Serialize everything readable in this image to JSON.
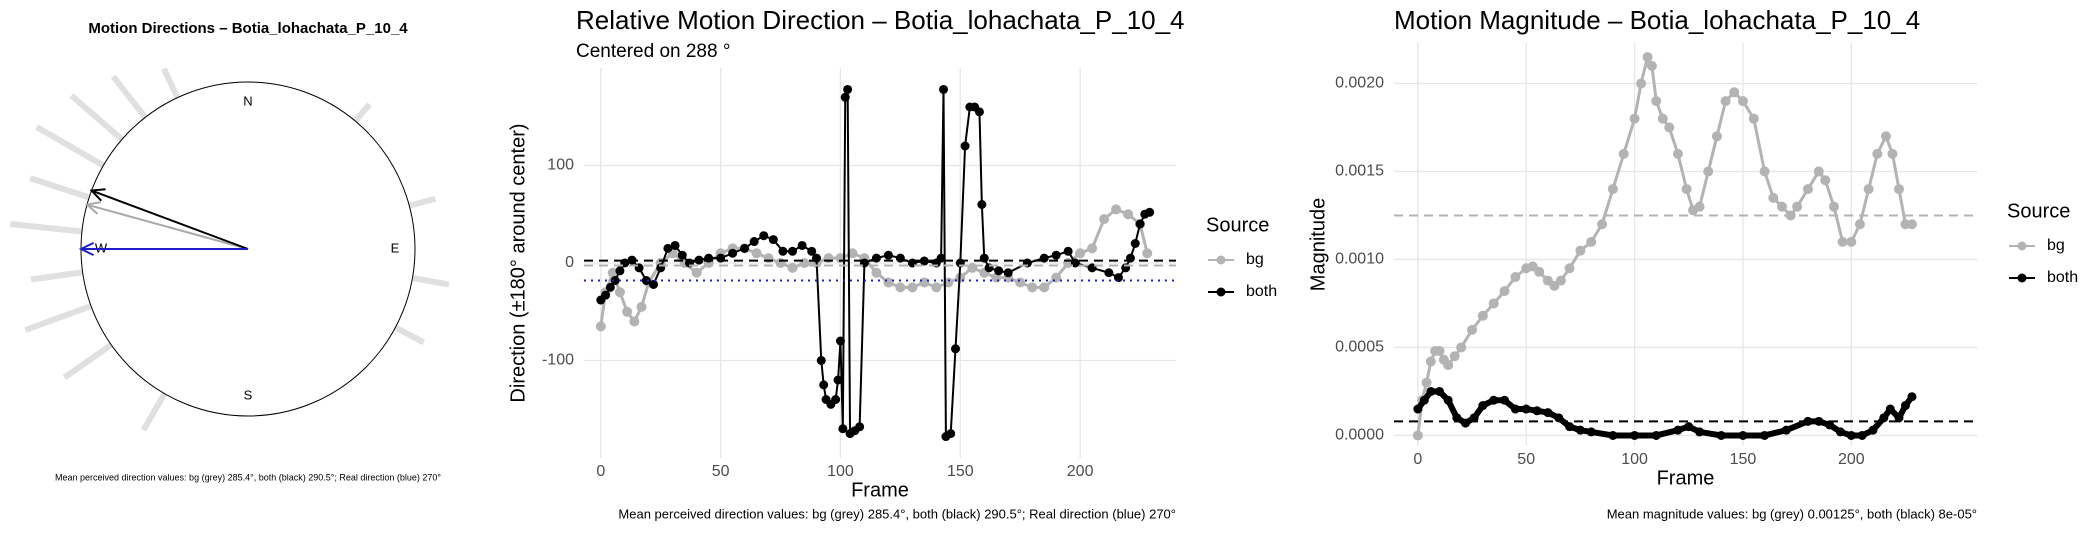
{
  "chart_data": [
    {
      "type": "polar",
      "title": "Motion Directions – Botia_lohachata_P_10_4",
      "compass": [
        "N",
        "E",
        "S",
        "W"
      ],
      "arrows": [
        {
          "value": 285.4,
          "color": "#aaaaaa"
        },
        {
          "value": 290.5,
          "color": "#000000"
        },
        {
          "value": 270,
          "color": "#1f1fc8"
        }
      ],
      "caption": "Mean perceived direction values: bg (grey) 285.4°, both (black) 290.5°; Real direction (blue) 270°"
    },
    {
      "type": "line",
      "title": "Relative Motion Direction – Botia_lohachata_P_10_4",
      "subtitle": "Centered on  288 °",
      "xlabel": "Frame",
      "ylabel": "Direction (±180° around center)",
      "caption": "Mean perceived direction values: bg (grey) 285.4°, both (black) 290.5°; Real direction (blue) 270°",
      "legend_title": "Source",
      "xlim": [
        -7,
        240
      ],
      "ylim": [
        -200,
        200
      ],
      "xticks": [
        0,
        50,
        100,
        150,
        200
      ],
      "yticks": [
        -100,
        0,
        100
      ],
      "grid": true,
      "hlines": [
        {
          "value": 2.5,
          "color": "#000000",
          "style": "dashed"
        },
        {
          "value": -2.6,
          "color": "#b3b3b3",
          "style": "dashed"
        },
        {
          "value": -18,
          "color": "#1f1fc8",
          "style": "dotted"
        }
      ],
      "series": [
        {
          "name": "bg",
          "color": "#b3b3b3",
          "x": [
            0,
            2,
            5,
            8,
            11,
            14,
            17,
            20,
            25,
            30,
            35,
            40,
            45,
            50,
            55,
            60,
            65,
            70,
            75,
            80,
            85,
            90,
            95,
            100,
            105,
            110,
            115,
            120,
            125,
            130,
            135,
            140,
            145,
            150,
            155,
            160,
            165,
            170,
            175,
            180,
            185,
            190,
            195,
            200,
            205,
            210,
            215,
            220,
            225,
            228
          ],
          "values": [
            -65,
            -30,
            -10,
            -30,
            -50,
            -60,
            -45,
            -20,
            0,
            10,
            0,
            -10,
            0,
            10,
            15,
            15,
            10,
            5,
            0,
            -5,
            0,
            0,
            5,
            5,
            10,
            5,
            -10,
            -20,
            -25,
            -25,
            -20,
            -25,
            -20,
            -15,
            -5,
            -10,
            -15,
            -15,
            -20,
            -25,
            -25,
            -15,
            0,
            10,
            15,
            45,
            55,
            50,
            40,
            10
          ]
        },
        {
          "name": "both",
          "color": "#000000",
          "x": [
            0,
            2,
            4,
            6,
            8,
            10,
            13,
            16,
            19,
            22,
            25,
            28,
            31,
            34,
            37,
            41,
            45,
            50,
            55,
            60,
            64,
            68,
            72,
            76,
            80,
            84,
            88,
            90,
            92,
            93,
            94,
            96,
            98,
            99,
            100,
            101,
            102,
            103,
            104,
            106,
            108,
            110,
            115,
            120,
            125,
            130,
            135,
            140,
            142,
            143,
            144,
            146,
            148,
            150,
            152,
            154,
            156,
            158,
            159,
            160,
            162,
            166,
            170,
            178,
            185,
            190,
            195,
            198,
            205,
            212,
            216,
            219,
            221,
            223,
            225,
            227,
            229
          ],
          "values": [
            -38,
            -33,
            -25,
            -18,
            -8,
            0,
            3,
            -5,
            -18,
            -22,
            -5,
            15,
            18,
            8,
            0,
            3,
            5,
            5,
            10,
            15,
            22,
            28,
            24,
            12,
            12,
            18,
            12,
            5,
            -100,
            -125,
            -140,
            -145,
            -140,
            -120,
            -80,
            -170,
            170,
            178,
            -175,
            -172,
            -168,
            0,
            5,
            8,
            5,
            0,
            2,
            0,
            5,
            178,
            -178,
            -175,
            -88,
            0,
            120,
            160,
            160,
            155,
            60,
            5,
            -5,
            -8,
            -10,
            0,
            5,
            8,
            12,
            0,
            -5,
            -10,
            -15,
            -5,
            5,
            20,
            40,
            50,
            52
          ]
        }
      ]
    },
    {
      "type": "line",
      "title": "Motion Magnitude – Botia_lohachata_P_10_4",
      "xlabel": "Frame",
      "ylabel": "Magnitude",
      "caption": "Mean magnitude values: bg (grey) 0.00125°, both (black) 8e-05°",
      "legend_title": "Source",
      "xlim": [
        -11,
        258
      ],
      "ylim": [
        -6e-05,
        0.00223
      ],
      "xticks": [
        0,
        50,
        100,
        150,
        200
      ],
      "yticks": [
        {
          "value": 0,
          "label": "0.0000"
        },
        0.0005,
        {
          "value": 0.001,
          "label": "0.0010"
        },
        0.0015,
        {
          "value": 0.002,
          "label": "0.0020"
        }
      ],
      "grid": true,
      "hlines": [
        {
          "value": 0.00125,
          "color": "#b3b3b3",
          "style": "dashed"
        },
        {
          "value": 8e-05,
          "color": "#000000",
          "style": "dashed"
        }
      ],
      "series": [
        {
          "name": "bg",
          "color": "#b3b3b3",
          "x": [
            0,
            2,
            4,
            6,
            8,
            10,
            12,
            14,
            17,
            20,
            25,
            30,
            35,
            40,
            45,
            50,
            53,
            56,
            60,
            63,
            66,
            70,
            75,
            80,
            85,
            90,
            95,
            100,
            103,
            106,
            108,
            110,
            113,
            116,
            120,
            124,
            127,
            130,
            134,
            138,
            142,
            146,
            150,
            155,
            160,
            164,
            168,
            172,
            175,
            180,
            185,
            188,
            192,
            196,
            200,
            204,
            208,
            212,
            216,
            219,
            222,
            225,
            228
          ],
          "values": [
            0,
            0.0002,
            0.0003,
            0.00042,
            0.00048,
            0.00048,
            0.00043,
            0.0004,
            0.00045,
            0.0005,
            0.0006,
            0.00068,
            0.00075,
            0.00082,
            0.0009,
            0.00095,
            0.00096,
            0.00093,
            0.00088,
            0.00085,
            0.00088,
            0.00095,
            0.00105,
            0.0011,
            0.0012,
            0.0014,
            0.0016,
            0.0018,
            0.002,
            0.00215,
            0.0021,
            0.0019,
            0.0018,
            0.00175,
            0.0016,
            0.0014,
            0.00128,
            0.0013,
            0.0015,
            0.0017,
            0.0019,
            0.00195,
            0.0019,
            0.0018,
            0.0015,
            0.00135,
            0.0013,
            0.00125,
            0.0013,
            0.0014,
            0.0015,
            0.00145,
            0.0013,
            0.0011,
            0.0011,
            0.0012,
            0.0014,
            0.0016,
            0.0017,
            0.0016,
            0.0014,
            0.0012,
            0.0012
          ]
        },
        {
          "name": "both",
          "color": "#000000",
          "x": [
            0,
            3,
            6,
            10,
            14,
            18,
            22,
            26,
            30,
            35,
            40,
            45,
            50,
            55,
            60,
            65,
            70,
            75,
            80,
            90,
            100,
            110,
            120,
            125,
            130,
            140,
            150,
            160,
            170,
            180,
            185,
            190,
            195,
            200,
            205,
            210,
            215,
            218,
            222,
            225,
            228
          ],
          "values": [
            0.00015,
            0.0002,
            0.00025,
            0.00025,
            0.0002,
            0.0001,
            7e-05,
            0.0001,
            0.00017,
            0.0002,
            0.0002,
            0.00015,
            0.00015,
            0.00014,
            0.00013,
            0.0001,
            5e-05,
            3e-05,
            2e-05,
            0,
            0,
            0,
            3e-05,
            5e-05,
            2e-05,
            0,
            0,
            0,
            3e-05,
            8e-05,
            8e-05,
            6e-05,
            2e-05,
            0,
            0,
            3e-05,
            0.0001,
            0.00015,
            0.0001,
            0.00017,
            0.00022
          ]
        }
      ]
    }
  ]
}
